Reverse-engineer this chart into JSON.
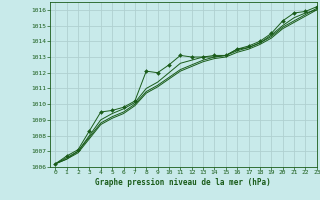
{
  "title": "Graphe pression niveau de la mer (hPa)",
  "background_color": "#c8eaea",
  "grid_color": "#b0d0d0",
  "line_color": "#1a5c1a",
  "xlim": [
    -0.5,
    23
  ],
  "ylim": [
    1006,
    1016.5
  ],
  "yticks": [
    1006,
    1007,
    1008,
    1009,
    1010,
    1011,
    1012,
    1013,
    1014,
    1015,
    1016
  ],
  "xticks": [
    0,
    1,
    2,
    3,
    4,
    5,
    6,
    7,
    8,
    9,
    10,
    11,
    12,
    13,
    14,
    15,
    16,
    17,
    18,
    19,
    20,
    21,
    22,
    23
  ],
  "series": [
    [
      1006.2,
      1006.7,
      1007.1,
      1008.3,
      1009.5,
      1009.6,
      1009.8,
      1010.2,
      1012.1,
      1012.0,
      1012.5,
      1013.1,
      1013.0,
      1013.0,
      1013.1,
      1013.1,
      1013.5,
      1013.7,
      1014.0,
      1014.5,
      1015.3,
      1015.8,
      1015.9,
      1016.2
    ],
    [
      1006.2,
      1006.6,
      1007.0,
      1008.0,
      1009.0,
      1009.4,
      1009.7,
      1010.1,
      1011.0,
      1011.4,
      1012.0,
      1012.6,
      1012.8,
      1013.0,
      1013.0,
      1013.1,
      1013.5,
      1013.6,
      1013.9,
      1014.4,
      1015.0,
      1015.5,
      1015.8,
      1016.0
    ],
    [
      1006.2,
      1006.5,
      1007.0,
      1007.9,
      1008.8,
      1009.2,
      1009.5,
      1010.0,
      1010.8,
      1011.2,
      1011.7,
      1012.2,
      1012.5,
      1012.8,
      1013.0,
      1013.1,
      1013.4,
      1013.6,
      1013.9,
      1014.3,
      1014.9,
      1015.3,
      1015.7,
      1016.1
    ],
    [
      1006.2,
      1006.5,
      1006.9,
      1007.8,
      1008.7,
      1009.1,
      1009.4,
      1009.9,
      1010.7,
      1011.1,
      1011.6,
      1012.1,
      1012.4,
      1012.7,
      1012.9,
      1013.0,
      1013.3,
      1013.5,
      1013.8,
      1014.2,
      1014.8,
      1015.2,
      1015.6,
      1016.0
    ]
  ]
}
